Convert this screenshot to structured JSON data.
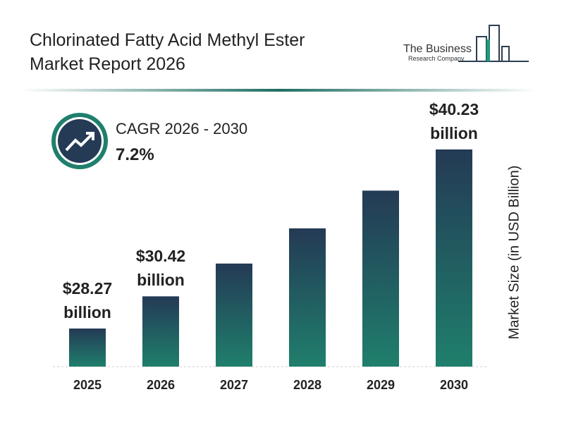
{
  "chart_data": {
    "type": "bar",
    "title": "Chlorinated Fatty Acid Methyl Ester Market Report 2026",
    "logo": [
      "The Business",
      "Research Company"
    ],
    "cagr_label": "CAGR 2026 - 2030",
    "cagr_value": "7.2%",
    "y_label": "Market Size (in USD Billion)",
    "categories": [
      "2025",
      "2026",
      "2027",
      "2028",
      "2029",
      "2030"
    ],
    "values": [
      28.27,
      30.42,
      32.61,
      34.96,
      37.48,
      40.23
    ],
    "value_labels": [
      "$28.27 billion",
      "$30.42 billion",
      null,
      null,
      null,
      "$40.23 billion"
    ],
    "color": [
      "#243a55",
      "#1f7f6c"
    ]
  }
}
